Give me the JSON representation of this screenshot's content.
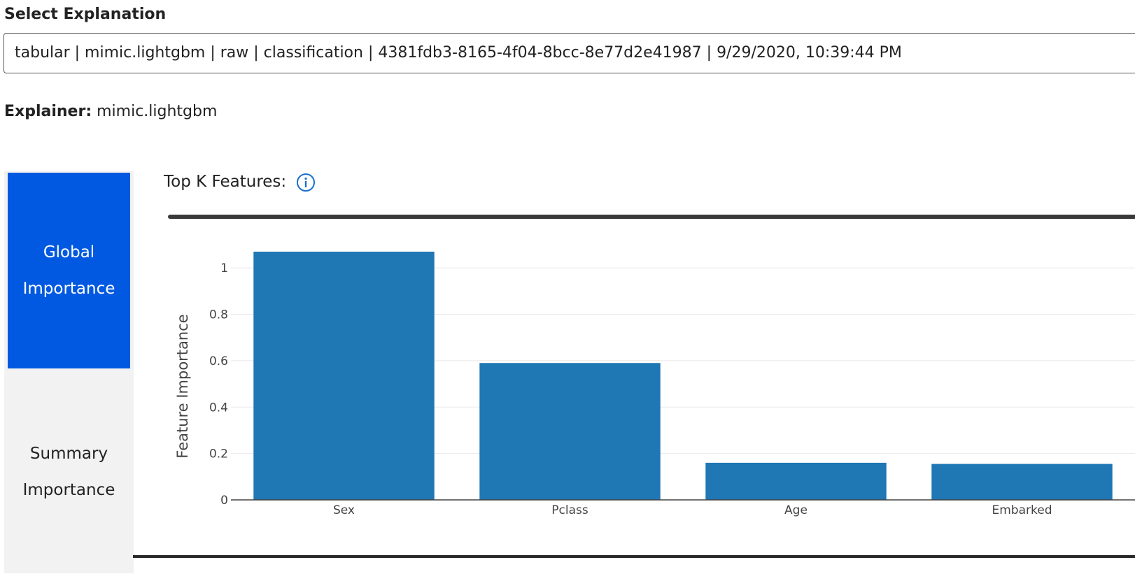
{
  "header": {
    "select_title": "Select Explanation",
    "select_value": "tabular | mimic.lightgbm | raw | classification | 4381fdb3-8165-4f04-8bcc-8e77d2e41987 | 9/29/2020, 10:39:44 PM",
    "explainer_label": "Explainer:",
    "explainer_value": "mimic.lightgbm"
  },
  "nav": {
    "tabs": [
      {
        "label": "Global Importance",
        "active": true
      },
      {
        "label": "Summary Importance",
        "active": false
      }
    ]
  },
  "controls": {
    "topk_label": "Top K Features:",
    "info_icon": "info-icon"
  },
  "colors": {
    "active_tab": "#0059e0",
    "bar": "#1f77b4",
    "info_icon": "#1a6fcf"
  },
  "chart_data": {
    "type": "bar",
    "categories": [
      "Sex",
      "Pclass",
      "Age",
      "Embarked"
    ],
    "values": [
      1.07,
      0.59,
      0.16,
      0.155
    ],
    "title": "",
    "xlabel": "",
    "ylabel": "Feature Importance",
    "ylim": [
      0,
      1.1
    ],
    "yticks": [
      0,
      0.2,
      0.4,
      0.6,
      0.8,
      1
    ],
    "ytick_labels": [
      "0",
      "0.2",
      "0.4",
      "0.6",
      "0.8",
      "1"
    ],
    "grid": true
  }
}
